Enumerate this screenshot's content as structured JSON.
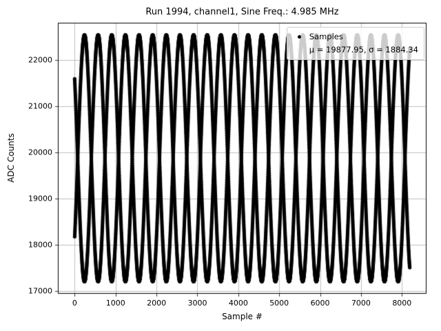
{
  "figure": {
    "title": "Run 1994, channel1, Sine Freq.: 4.985 MHz",
    "xlabel": "Sample #",
    "ylabel": "ADC Counts"
  },
  "legend": {
    "samples_label": "Samples",
    "stats_label": "μ = 19877.95, σ = 1884.34"
  },
  "chart_data": {
    "type": "scatter",
    "title": "Run 1994, channel1, Sine Freq.: 4.985 MHz",
    "xlabel": "Sample #",
    "ylabel": "ADC Counts",
    "xlim": [
      -410,
      8601
    ],
    "ylim": [
      16946,
      22809
    ],
    "xticks": [
      0,
      1000,
      2000,
      3000,
      4000,
      5000,
      6000,
      7000,
      8000
    ],
    "yticks": [
      17000,
      18000,
      19000,
      20000,
      21000,
      22000
    ],
    "grid": true,
    "grid_color": "#b0b0b0",
    "legend_position": "upper right",
    "legend_entries": [
      "Samples",
      "μ = 19877.95, σ = 1884.34"
    ],
    "stats": {
      "mu": 19877.95,
      "sigma": 1884.34
    },
    "series": [
      {
        "name": "Samples",
        "marker": "point",
        "color": "#000000",
        "marker_radius_px": 2.6,
        "signal_model": "aliased_sine",
        "n_samples": 8192,
        "mu": 19877.95,
        "sigma": 1884.34,
        "offset": 19877.95,
        "amplitude": 2664.8,
        "sine_freq_mhz": 4.985,
        "normalized_frequency": 0.4985,
        "phase_rad": 0.7
      }
    ]
  }
}
